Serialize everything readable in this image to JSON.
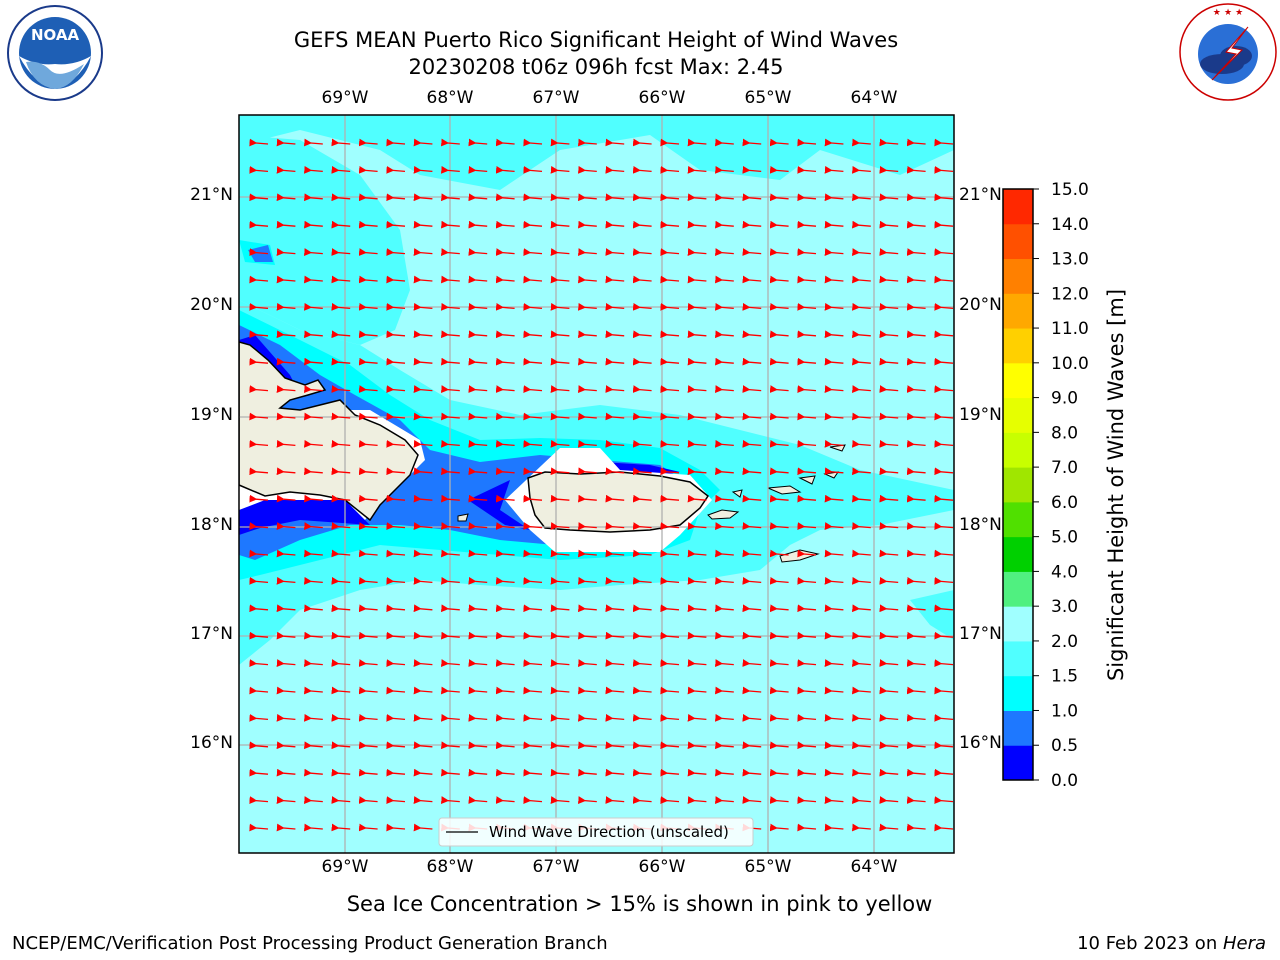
{
  "header": {
    "title_line1": "GEFS MEAN Puerto Rico Significant Height of Wind Waves",
    "title_line2": "20230208 t06z 096h fcst   Max: 2.45"
  },
  "logos": {
    "left": "NOAA",
    "left_ring_text": "NATIONAL OCEANIC AND ATMOSPHERIC ADMINISTRATION · U.S. DEPARTMENT OF COMMERCE",
    "right_ring_text": "NATIONAL WEATHER SERVICE"
  },
  "map": {
    "lon_labels": [
      "69°W",
      "68°W",
      "67°W",
      "66°W",
      "65°W",
      "64°W"
    ],
    "lat_labels": [
      "21°N",
      "20°N",
      "19°N",
      "18°N",
      "17°N",
      "16°N"
    ],
    "legend_label": "Wind Wave Direction (unscaled)",
    "arrow_color": "#ff0000",
    "gridline_color": "#b0b0b0",
    "land_color": "#efefe0"
  },
  "colorbar": {
    "label": "Significant Height of Wind Waves [m]",
    "ticks": [
      "0.0",
      "0.5",
      "1.0",
      "1.5",
      "2.0",
      "3.0",
      "4.0",
      "5.0",
      "6.0",
      "7.0",
      "8.0",
      "9.0",
      "10.0",
      "11.0",
      "12.0",
      "13.0",
      "14.0",
      "15.0"
    ],
    "colors": [
      "#0000ff",
      "#1e78ff",
      "#00ffff",
      "#50ffff",
      "#a0ffff",
      "#50f080",
      "#00d000",
      "#50e000",
      "#a0e600",
      "#c8ff00",
      "#e6ff00",
      "#ffff00",
      "#ffd000",
      "#ffa800",
      "#ff8000",
      "#ff5000",
      "#ff2800"
    ]
  },
  "notes": {
    "sea_ice": "Sea Ice Concentration > 15% is shown in pink to yellow"
  },
  "footer": {
    "left": "NCEP/EMC/Verification Post Processing Product Generation Branch",
    "right_prefix": "10 Feb 2023 on ",
    "right_italic": "Hera"
  }
}
